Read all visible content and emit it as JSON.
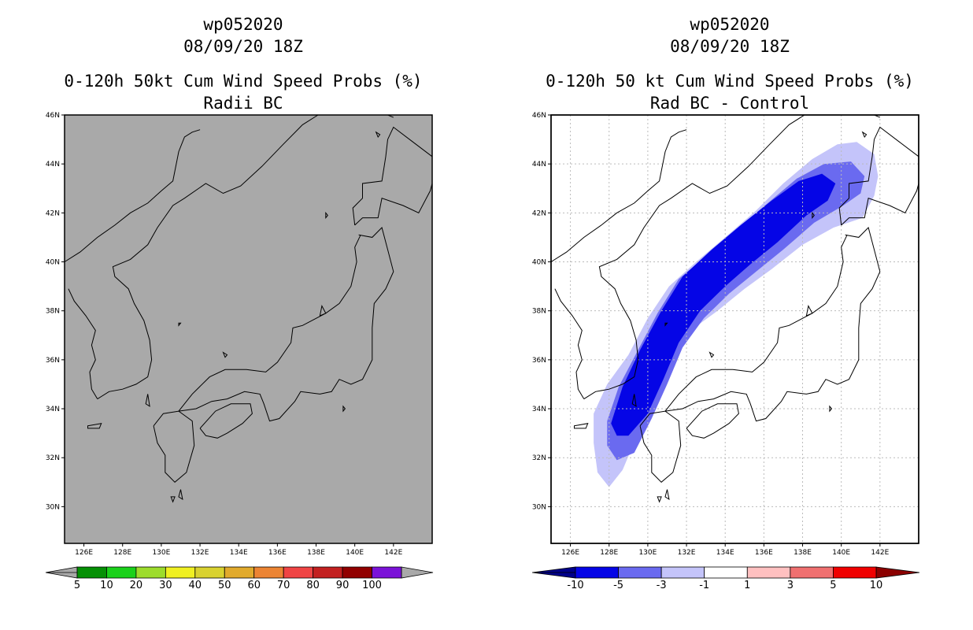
{
  "left_panel": {
    "storm_id": "wp052020",
    "datetime": "08/09/20 18Z",
    "title": "0-120h 50kt Cum Wind Speed Probs (%)",
    "subtitle": "Radii BC",
    "background_color": "#a9a9a9",
    "colorbar": {
      "labels": [
        "5",
        "10",
        "20",
        "30",
        "40",
        "50",
        "60",
        "70",
        "80",
        "90",
        "100"
      ],
      "colors": [
        "#059005",
        "#1ad11a",
        "#9ddc2c",
        "#f0f022",
        "#d9d230",
        "#e1aa2c",
        "#ec8433",
        "#f04444",
        "#c32020",
        "#910000",
        "#7b12d8"
      ],
      "end_color": "#a9a9a9"
    }
  },
  "right_panel": {
    "storm_id": "wp052020",
    "datetime": "08/09/20 18Z",
    "title": "0-120h 50 kt Cum Wind Speed Probs (%)",
    "subtitle": "Rad BC - Control",
    "colorbar": {
      "labels": [
        "-10",
        "-5",
        "-3",
        "-1",
        "1",
        "3",
        "5",
        "10"
      ],
      "colors": [
        "#0505e6",
        "#6a6af0",
        "#c4c4fa",
        "#ffffff",
        "#ffc0c0",
        "#f07070",
        "#f00000"
      ],
      "low_color": "#00008b",
      "high_color": "#8b0000"
    },
    "shading_colors": {
      "light": "#c4c4fa",
      "medium": "#6a6af0",
      "dark": "#0505e6"
    }
  },
  "axes": {
    "lat_labels": [
      "46N",
      "44N",
      "42N",
      "40N",
      "38N",
      "36N",
      "34N",
      "32N",
      "30N"
    ],
    "lat_values": [
      46,
      44,
      42,
      40,
      38,
      36,
      34,
      32,
      30
    ],
    "lon_labels": [
      "126E",
      "128E",
      "130E",
      "132E",
      "134E",
      "136E",
      "138E",
      "140E",
      "142E"
    ],
    "lon_values": [
      126,
      128,
      130,
      132,
      134,
      136,
      138,
      140,
      142
    ],
    "lat_range": [
      28.5,
      46
    ],
    "lon_range": [
      125,
      144
    ]
  }
}
